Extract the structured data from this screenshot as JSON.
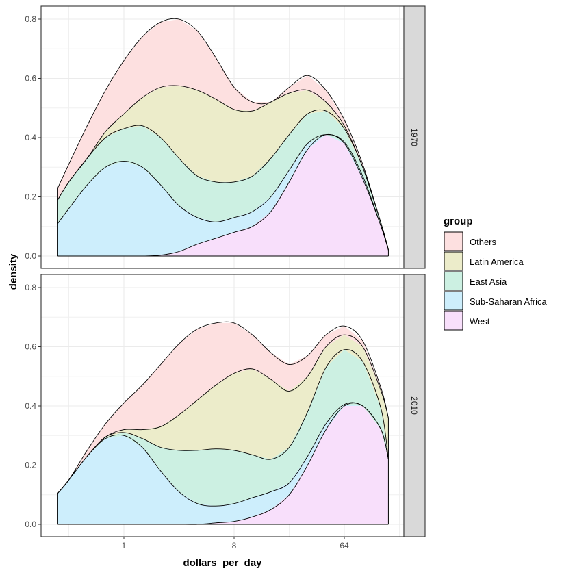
{
  "chart_data": {
    "type": "area",
    "subtype": "stacked density",
    "title": "",
    "xlabel": "dollars_per_day",
    "ylabel": "density",
    "x_scale": "log2",
    "x_ticks": [
      {
        "label": "1",
        "log2": 0
      },
      {
        "label": "8",
        "log2": 3
      },
      {
        "label": "64",
        "log2": 6
      }
    ],
    "y_ticks": [
      "0.0",
      "0.2",
      "0.4",
      "0.6",
      "0.8"
    ],
    "ylim": [
      0,
      0.8
    ],
    "xlim_log2": [
      -1.8,
      7.2
    ],
    "grid": true,
    "legend": {
      "title": "group",
      "position": "right",
      "entries": [
        {
          "name": "Others",
          "color": "#fde0e0"
        },
        {
          "name": "Latin America",
          "color": "#ececca"
        },
        {
          "name": "East Asia",
          "color": "#ccf0e2"
        },
        {
          "name": "Sub-Saharan Africa",
          "color": "#cdeefc"
        },
        {
          "name": "West",
          "color": "#f8dffb"
        }
      ]
    },
    "stack_order_bottom_to_top": [
      "West",
      "Sub-Saharan Africa",
      "East Asia",
      "Latin America",
      "Others"
    ],
    "x_log2": [
      -1.8,
      -1.5,
      -1,
      -0.5,
      0,
      0.5,
      1,
      1.5,
      2,
      2.5,
      3,
      3.5,
      4,
      4.5,
      5,
      5.5,
      6,
      6.5,
      7,
      7.2
    ],
    "facets": [
      {
        "label": "1970",
        "cumulative_tops": {
          "West": [
            0,
            0,
            0,
            0,
            0,
            0,
            0.003,
            0.015,
            0.04,
            0.06,
            0.08,
            0.1,
            0.15,
            0.25,
            0.36,
            0.41,
            0.38,
            0.26,
            0.1,
            0.02
          ],
          "Sub-Saharan Africa": [
            0.11,
            0.16,
            0.24,
            0.3,
            0.32,
            0.3,
            0.24,
            0.17,
            0.13,
            0.115,
            0.13,
            0.15,
            0.2,
            0.29,
            0.38,
            0.41,
            0.385,
            0.27,
            0.1,
            0.02
          ],
          "East Asia": [
            0.19,
            0.25,
            0.33,
            0.4,
            0.43,
            0.44,
            0.4,
            0.33,
            0.27,
            0.25,
            0.25,
            0.27,
            0.33,
            0.41,
            0.48,
            0.49,
            0.43,
            0.3,
            0.11,
            0.022
          ],
          "Latin America": [
            0.19,
            0.25,
            0.33,
            0.42,
            0.48,
            0.535,
            0.57,
            0.575,
            0.56,
            0.53,
            0.495,
            0.49,
            0.52,
            0.55,
            0.56,
            0.52,
            0.44,
            0.3,
            0.11,
            0.022
          ],
          "Others": [
            0.23,
            0.31,
            0.44,
            0.56,
            0.66,
            0.74,
            0.79,
            0.8,
            0.76,
            0.67,
            0.57,
            0.52,
            0.52,
            0.57,
            0.61,
            0.56,
            0.46,
            0.31,
            0.11,
            0.022
          ]
        }
      },
      {
        "label": "2010",
        "cumulative_tops": {
          "West": [
            0,
            0,
            0,
            0,
            0,
            0,
            0,
            0,
            0,
            0.005,
            0.01,
            0.025,
            0.05,
            0.1,
            0.2,
            0.32,
            0.4,
            0.4,
            0.32,
            0.22
          ],
          "Sub-Saharan Africa": [
            0.105,
            0.15,
            0.23,
            0.29,
            0.3,
            0.26,
            0.18,
            0.11,
            0.07,
            0.062,
            0.07,
            0.09,
            0.11,
            0.14,
            0.23,
            0.34,
            0.405,
            0.4,
            0.32,
            0.22
          ],
          "East Asia": [
            0.105,
            0.15,
            0.23,
            0.295,
            0.31,
            0.29,
            0.26,
            0.25,
            0.25,
            0.255,
            0.25,
            0.235,
            0.22,
            0.26,
            0.38,
            0.53,
            0.59,
            0.55,
            0.39,
            0.22
          ],
          "Latin America": [
            0.105,
            0.15,
            0.23,
            0.295,
            0.32,
            0.32,
            0.33,
            0.37,
            0.42,
            0.47,
            0.51,
            0.525,
            0.49,
            0.45,
            0.5,
            0.6,
            0.64,
            0.6,
            0.45,
            0.36
          ],
          "Others": [
            0.105,
            0.15,
            0.25,
            0.34,
            0.41,
            0.47,
            0.54,
            0.61,
            0.66,
            0.68,
            0.68,
            0.64,
            0.58,
            0.54,
            0.57,
            0.64,
            0.67,
            0.62,
            0.46,
            0.36
          ]
        }
      }
    ]
  }
}
